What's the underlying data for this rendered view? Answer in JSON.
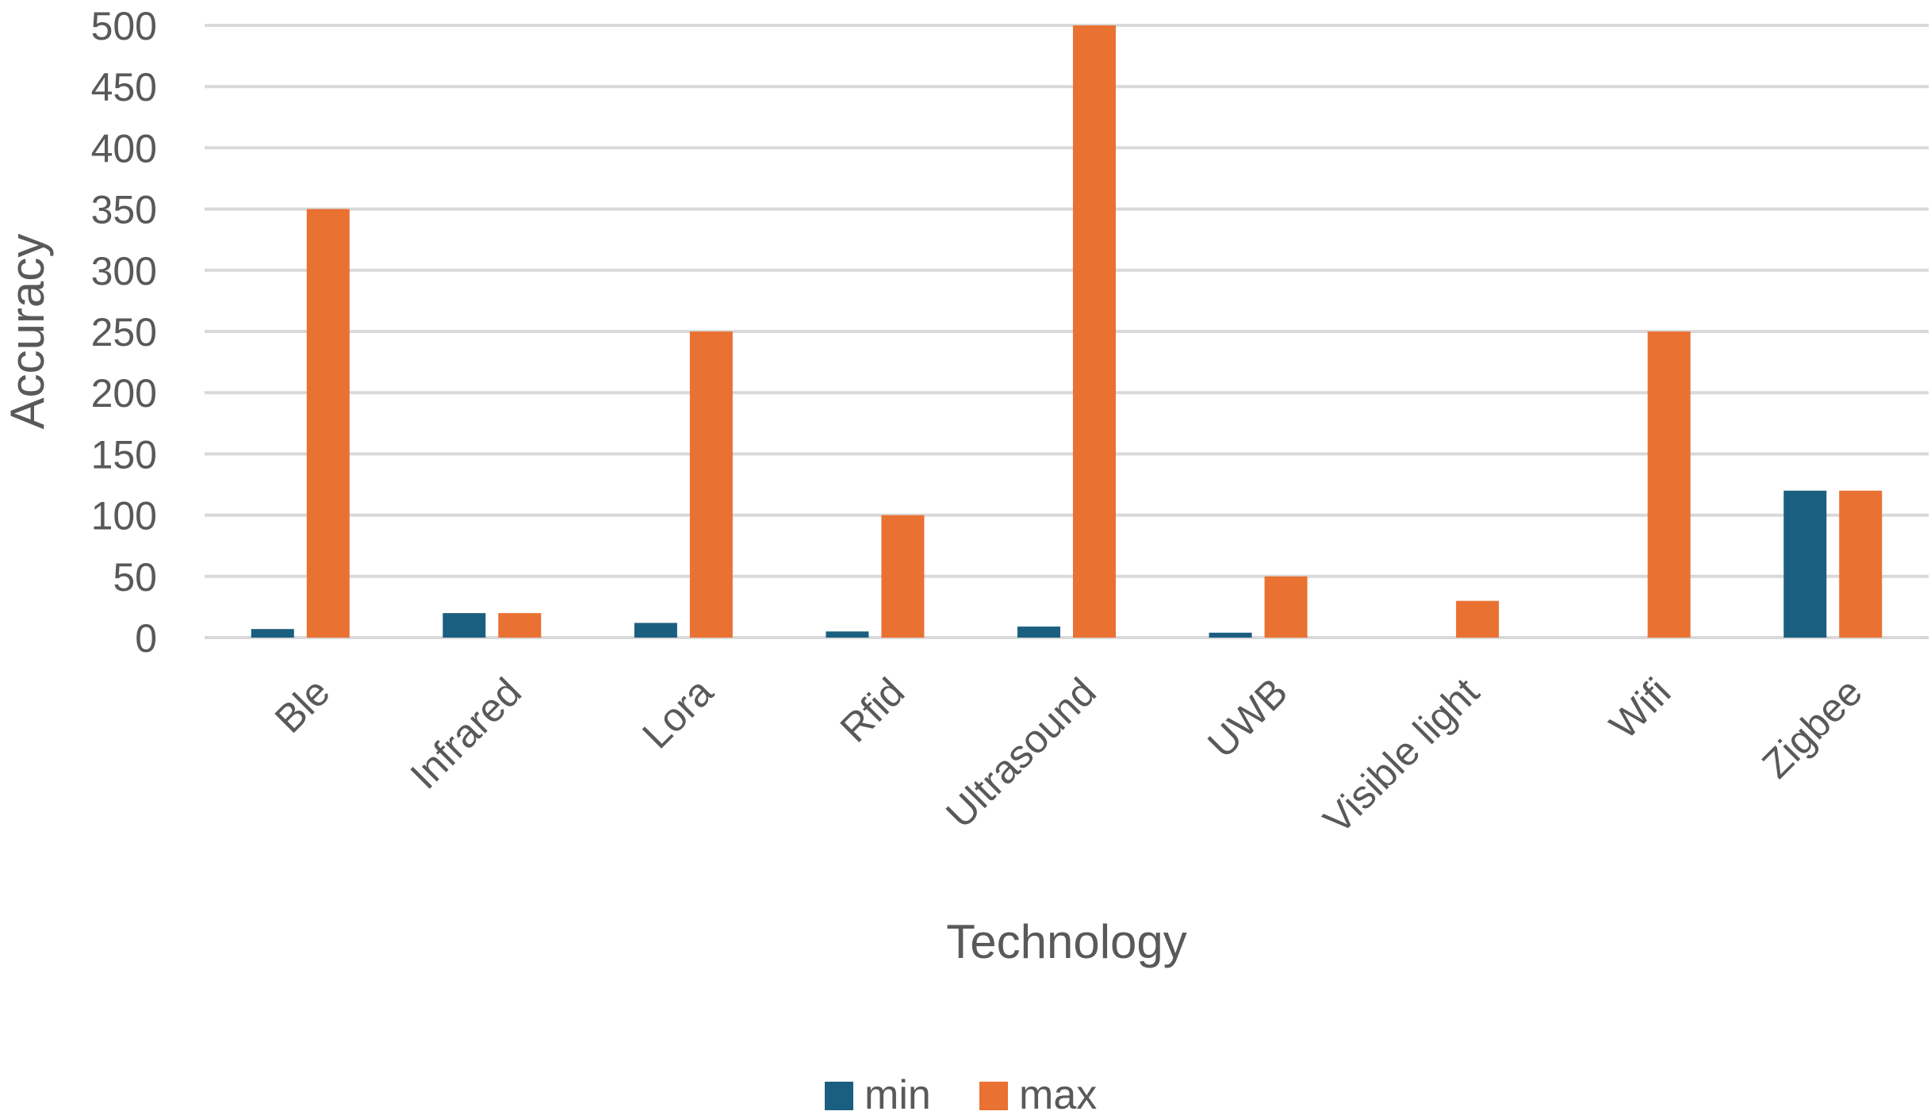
{
  "colors": {
    "min": "#1b5f80",
    "max": "#e97132",
    "grid": "#d9d9d9",
    "text": "#595959"
  },
  "chart_data": {
    "type": "bar",
    "xlabel": "Technology",
    "ylabel": "Accuracy",
    "ylim": [
      0,
      500
    ],
    "yticks": [
      0,
      50,
      100,
      150,
      200,
      250,
      300,
      350,
      400,
      450,
      500
    ],
    "grid": true,
    "legend_position": "bottom",
    "categories": [
      "Ble",
      "Infrared",
      "Lora",
      "Rfid",
      "Ultrasound",
      "UWB",
      "Visible light",
      "Wifi",
      "Zigbee"
    ],
    "series": [
      {
        "name": "min",
        "values": [
          7,
          20,
          12,
          5,
          9,
          4,
          0,
          0,
          120
        ]
      },
      {
        "name": "max",
        "values": [
          350,
          20,
          250,
          100,
          500,
          50,
          30,
          250,
          120
        ]
      }
    ]
  }
}
